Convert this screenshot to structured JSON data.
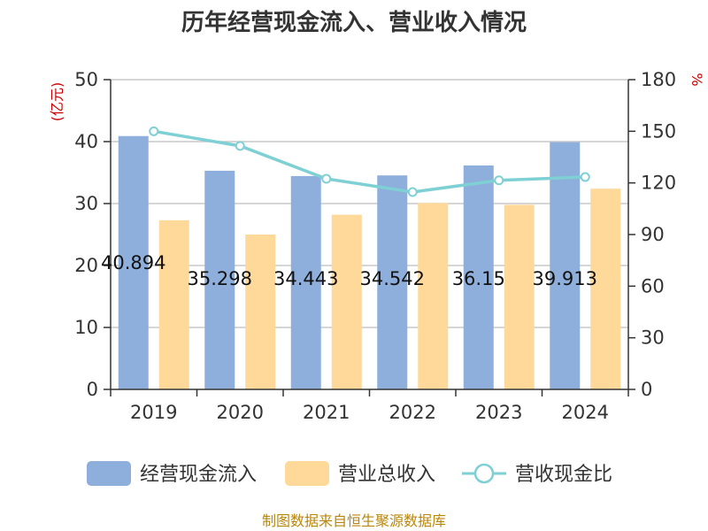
{
  "chart_data": {
    "type": "bar",
    "title": "历年经营现金流入、营业收入情况",
    "categories": [
      "2019",
      "2020",
      "2021",
      "2022",
      "2023",
      "2024"
    ],
    "left_axis": {
      "unit": "(亿元)",
      "ylim": [
        0,
        50
      ],
      "ticks": [
        0,
        10,
        20,
        30,
        40,
        50
      ]
    },
    "right_axis": {
      "unit": "%",
      "ylim": [
        0,
        180
      ],
      "ticks": [
        0,
        30,
        60,
        90,
        120,
        150,
        180
      ]
    },
    "series": [
      {
        "name": "经营现金流入",
        "type": "bar",
        "axis": "left",
        "color": "#8eaedb",
        "values": [
          40.894,
          35.298,
          34.443,
          34.542,
          36.15,
          39.913
        ],
        "labels": [
          "40.894",
          "35.298",
          "34.443",
          "34.542",
          "36.15",
          "39.913"
        ]
      },
      {
        "name": "营业总收入",
        "type": "bar",
        "axis": "left",
        "color": "#ffd99a",
        "values": [
          27.3,
          25.0,
          28.2,
          30.1,
          29.8,
          32.4
        ]
      },
      {
        "name": "营收现金比",
        "type": "line",
        "axis": "right",
        "color": "#7fd0d4",
        "values": [
          150.0,
          141.5,
          122.4,
          114.7,
          121.5,
          123.4
        ]
      }
    ],
    "grid": true,
    "legend": "bottom",
    "source": "制图数据来自恒生聚源数据库"
  }
}
